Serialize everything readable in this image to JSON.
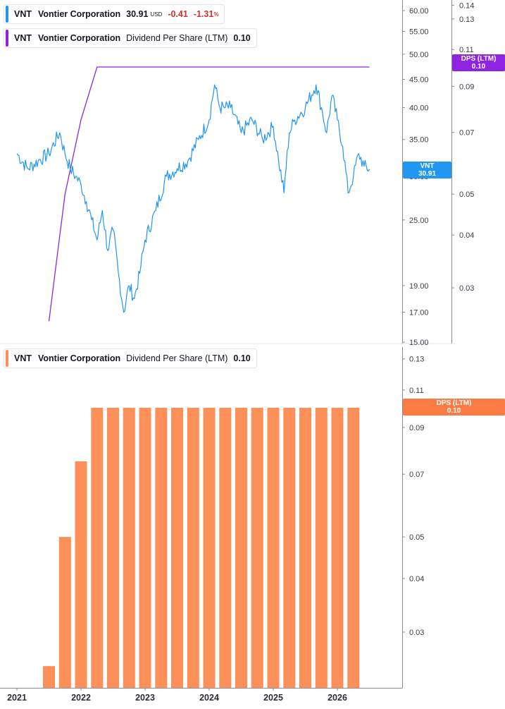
{
  "legends": {
    "price": {
      "symbol": "VNT",
      "name": "Vontier Corporation",
      "price": "30.91",
      "currency": "USD",
      "change": "-0.41",
      "change_pct": "-1.31",
      "pct_sign": "%"
    },
    "dps_top": {
      "symbol": "VNT",
      "name": "Vontier Corporation",
      "metric": "Dividend Per Share (LTM)",
      "value": "0.10"
    },
    "dps_bottom": {
      "symbol": "VNT",
      "name": "Vontier Corporation",
      "metric": "Dividend Per Share (LTM)",
      "value": "0.10"
    }
  },
  "badges": {
    "price": {
      "line1": "VNT",
      "line2": "30.91"
    },
    "dps_top": {
      "line1": "DPS (LTM)",
      "line2": "0.10"
    },
    "dps_bottom": {
      "line1": "DPS (LTM)",
      "line2": "0.10"
    }
  },
  "colors": {
    "price_line": "#2196f3",
    "dps_line": "#8e24e0",
    "bars": "#fd8f58",
    "badge_bottom": "#fb7b45",
    "axis": "#878b94",
    "negative": "#d32f2f"
  },
  "chart_data": [
    {
      "type": "line",
      "scale": "log",
      "series": [
        {
          "name": "VNT",
          "x": [
            "2021-01",
            "2021-03",
            "2021-05",
            "2021-07",
            "2021-09",
            "2021-10",
            "2021-11",
            "2021-12",
            "2022-01",
            "2022-02",
            "2022-03",
            "2022-04",
            "2022-05",
            "2022-06",
            "2022-07",
            "2022-08",
            "2022-09",
            "2022-10",
            "2022-11",
            "2022-12",
            "2023-01",
            "2023-03",
            "2023-05",
            "2023-07",
            "2023-09",
            "2023-11",
            "2024-01",
            "2024-02",
            "2024-03",
            "2024-04",
            "2024-05",
            "2024-07",
            "2024-09",
            "2024-11",
            "2025-01",
            "2025-02",
            "2025-03",
            "2025-04",
            "2025-05",
            "2025-07",
            "2025-09",
            "2025-10",
            "2025-11",
            "2025-12",
            "2026-01",
            "2026-02",
            "2026-03",
            "2026-04",
            "2026-05",
            "2026-06",
            "2026-07"
          ],
          "values": [
            33,
            31,
            32,
            33,
            36,
            33,
            31,
            30,
            29,
            27,
            25,
            23,
            26,
            22,
            24,
            20,
            17,
            19,
            18,
            20,
            23,
            26,
            30,
            31,
            32,
            35,
            38,
            44,
            40,
            40,
            40,
            36,
            38,
            35,
            37,
            32,
            28,
            36,
            38,
            40,
            44,
            40,
            36,
            42,
            38,
            34,
            28,
            30,
            33,
            31.3,
            30.91
          ]
        },
        {
          "name": "DPS (LTM)",
          "x": [
            "2021-07",
            "2021-10",
            "2022-01",
            "2022-04",
            "2026-07"
          ],
          "values": [
            0.025,
            0.05,
            0.075,
            0.1,
            0.1
          ]
        }
      ],
      "price_axis_ticks": [
        "15.00",
        "17.00",
        "19.00",
        "25.00",
        "30.00",
        "35.00",
        "40.00",
        "45.00",
        "50.00",
        "55.00",
        "60.00"
      ],
      "dps_axis_ticks": [
        "0.03",
        "0.04",
        "0.05",
        "0.07",
        "0.09",
        "0.11",
        "0.13",
        "0.14"
      ]
    },
    {
      "type": "bar",
      "scale": "log",
      "series": [
        {
          "name": "DPS (LTM)",
          "x": [
            "2021-07",
            "2021-10",
            "2022-01",
            "2022-04",
            "2022-07",
            "2022-10",
            "2023-01",
            "2023-04",
            "2023-07",
            "2023-10",
            "2024-01",
            "2024-04",
            "2024-07",
            "2024-10",
            "2025-01",
            "2025-04",
            "2025-07",
            "2025-10",
            "2026-01",
            "2026-04"
          ],
          "values": [
            0.025,
            0.05,
            0.075,
            0.1,
            0.1,
            0.1,
            0.1,
            0.1,
            0.1,
            0.1,
            0.1,
            0.1,
            0.1,
            0.1,
            0.1,
            0.1,
            0.1,
            0.1,
            0.1,
            0.1
          ]
        }
      ],
      "axis_ticks": [
        "0.03",
        "0.04",
        "0.05",
        "0.07",
        "0.09",
        "0.11",
        "0.13"
      ],
      "x_ticks": [
        "2021",
        "2022",
        "2023",
        "2024",
        "2025",
        "2026"
      ]
    }
  ]
}
